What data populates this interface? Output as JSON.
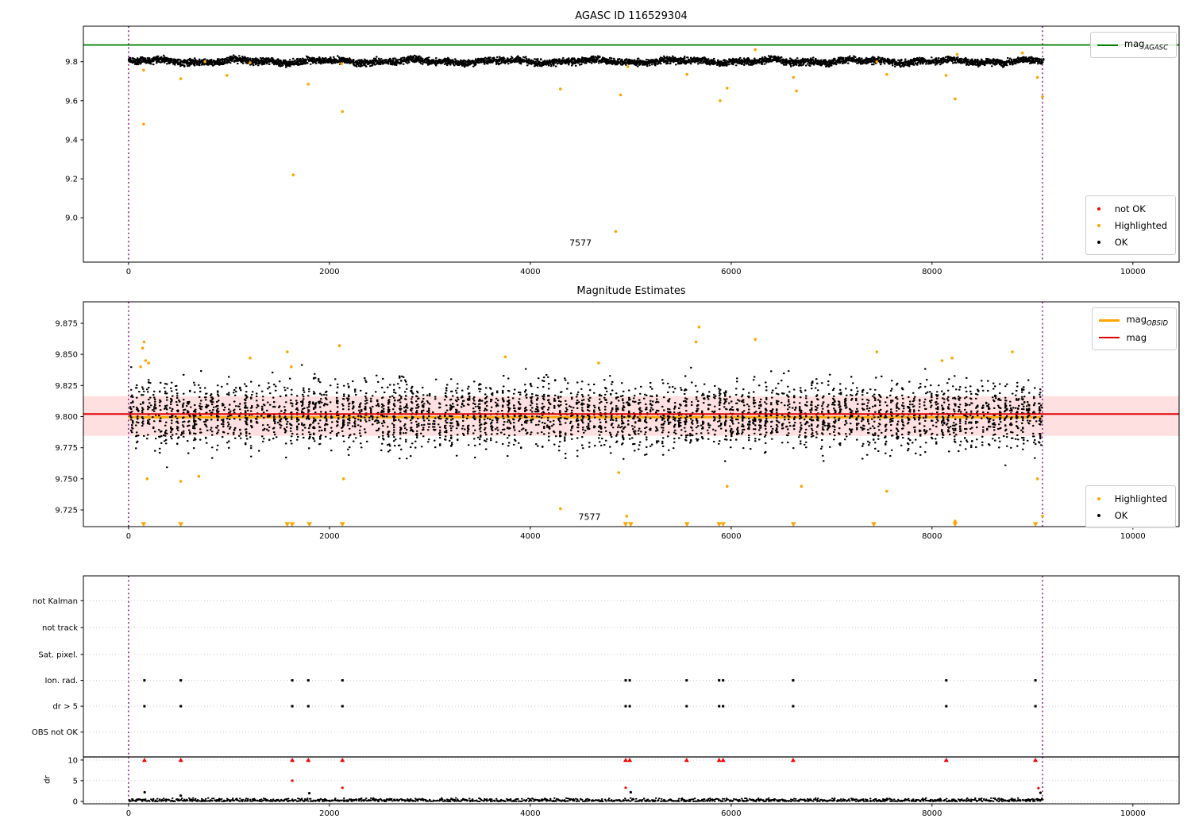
{
  "titles": {
    "top": "AGASC ID 116529304",
    "middle": "Magnitude Estimates"
  },
  "colors": {
    "ok": "#000000",
    "highlighted": "#FFA500",
    "not_ok": "#FF0000",
    "mag_agasc_line": "#008000",
    "mag_line": "#E00000",
    "obsid_line": "#FFA500",
    "mag_band": "rgba(255,0,0,0.12)",
    "vline": "#8B008B",
    "grid": "#c8c8c8",
    "spine": "#000000"
  },
  "legends": {
    "plot1_line": {
      "main": "mag",
      "sub": "AGASC"
    },
    "plot1_status": [
      {
        "label": "not OK"
      },
      {
        "label": "Highlighted"
      },
      {
        "label": "OK"
      }
    ],
    "plot2_obsid": {
      "main": "mag",
      "sub": "OBSID"
    },
    "plot2_mag": {
      "main": "mag",
      "sub": ""
    },
    "plot2_status": [
      {
        "label": "Highlighted"
      },
      {
        "label": "OK"
      }
    ]
  },
  "chart_data": [
    {
      "type": "scatter",
      "title": "AGASC ID 116529304",
      "xlim": [
        -450,
        10460
      ],
      "ylim": [
        8.773,
        9.982
      ],
      "xticks": [
        0,
        2000,
        4000,
        6000,
        8000,
        10000
      ],
      "yticks": [
        {
          "v": 9.0,
          "label": "9.0"
        },
        {
          "v": 9.2,
          "label": "9.2"
        },
        {
          "v": 9.4,
          "label": "9.4"
        },
        {
          "v": 9.6,
          "label": "9.6"
        },
        {
          "v": 9.8,
          "label": "9.8"
        }
      ],
      "mag_agasc": 9.886,
      "vlines": [
        0,
        9100
      ],
      "ok_band": {
        "mean": 9.802,
        "n": 4500,
        "x_range": [
          0,
          9100
        ],
        "spread": 0.026,
        "wiggle": 0.008
      },
      "highlighted": [
        [
          150,
          9.757
        ],
        [
          150,
          9.48
        ],
        [
          520,
          9.713
        ],
        [
          760,
          9.8
        ],
        [
          980,
          9.73
        ],
        [
          1210,
          9.795
        ],
        [
          1640,
          9.22
        ],
        [
          1790,
          9.685
        ],
        [
          2120,
          9.79
        ],
        [
          2130,
          9.545
        ],
        [
          4300,
          9.66
        ],
        [
          4850,
          8.93
        ],
        [
          4900,
          9.63
        ],
        [
          4970,
          9.775
        ],
        [
          5560,
          9.735
        ],
        [
          5890,
          9.6
        ],
        [
          5960,
          9.665
        ],
        [
          6240,
          9.862
        ],
        [
          6620,
          9.72
        ],
        [
          6650,
          9.65
        ],
        [
          7450,
          9.8
        ],
        [
          7550,
          9.735
        ],
        [
          8140,
          9.73
        ],
        [
          8230,
          9.61
        ],
        [
          8250,
          9.838
        ],
        [
          8900,
          9.845
        ],
        [
          9050,
          9.72
        ],
        [
          9100,
          9.62
        ]
      ],
      "annotation": {
        "text": "7577",
        "x": 4500,
        "y": 8.871
      }
    },
    {
      "type": "scatter",
      "title": "Magnitude Estimates",
      "xlim": [
        -450,
        10460
      ],
      "ylim": [
        9.7116,
        9.8922
      ],
      "xticks": [
        0,
        2000,
        4000,
        6000,
        8000,
        10000
      ],
      "yticks": [
        {
          "v": 9.725,
          "label": "9.725"
        },
        {
          "v": 9.75,
          "label": "9.750"
        },
        {
          "v": 9.775,
          "label": "9.775"
        },
        {
          "v": 9.8,
          "label": "9.800"
        },
        {
          "v": 9.825,
          "label": "9.825"
        },
        {
          "v": 9.85,
          "label": "9.850"
        },
        {
          "v": 9.875,
          "label": "9.875"
        }
      ],
      "mag": 9.802,
      "mag_obsid": 9.7995,
      "mag_band": [
        9.7845,
        9.8164
      ],
      "vlines": [
        0,
        9100
      ],
      "ok_cloud": {
        "mean": 9.801,
        "n": 4200,
        "x_range": [
          0,
          9100
        ],
        "spread": 0.045,
        "columns": 160
      },
      "highlighted": [
        [
          120,
          9.84
        ],
        [
          140,
          9.855
        ],
        [
          155,
          9.86
        ],
        [
          170,
          9.845
        ],
        [
          185,
          9.75
        ],
        [
          200,
          9.843
        ],
        [
          520,
          9.748
        ],
        [
          700,
          9.752
        ],
        [
          1210,
          9.847
        ],
        [
          1580,
          9.852
        ],
        [
          1620,
          9.84
        ],
        [
          2100,
          9.857
        ],
        [
          2140,
          9.75
        ],
        [
          3750,
          9.848
        ],
        [
          4300,
          9.726
        ],
        [
          4680,
          9.843
        ],
        [
          4880,
          9.755
        ],
        [
          4960,
          9.72
        ],
        [
          5650,
          9.86
        ],
        [
          5680,
          9.872
        ],
        [
          5960,
          9.744
        ],
        [
          6240,
          9.862
        ],
        [
          6700,
          9.744
        ],
        [
          7450,
          9.852
        ],
        [
          7550,
          9.74
        ],
        [
          8100,
          9.845
        ],
        [
          8200,
          9.847
        ],
        [
          8230,
          9.716
        ],
        [
          8800,
          9.852
        ],
        [
          9050,
          9.75
        ],
        [
          9100,
          9.72
        ]
      ],
      "clipped_x": [
        150,
        520,
        1580,
        1630,
        1800,
        2130,
        4950,
        5000,
        5560,
        5880,
        5920,
        6620,
        7420,
        8230,
        9030
      ],
      "annotation": {
        "text": "7577",
        "x": 4590,
        "y": 9.7193
      }
    },
    {
      "type": "flags",
      "xlim": [
        -450,
        10460
      ],
      "xticks": [
        0,
        2000,
        4000,
        6000,
        8000,
        10000
      ],
      "u_top": 10.9,
      "u_bottom": -0.115,
      "rows": [
        {
          "label": "not Kalman",
          "u": 9.7,
          "x": []
        },
        {
          "label": "not track",
          "u": 8.4,
          "x": []
        },
        {
          "label": "Sat. pixel.",
          "u": 7.1,
          "x": []
        },
        {
          "label": "Ion. rad.",
          "u": 5.85,
          "x": [
            158,
            520,
            1630,
            1790,
            2130,
            4950,
            4990,
            5557,
            5880,
            5920,
            6617,
            8142,
            9030
          ]
        },
        {
          "label": "dr > 5",
          "u": 4.6,
          "x": [
            158,
            520,
            1630,
            1790,
            2130,
            4950,
            4990,
            5557,
            5880,
            5920,
            6617,
            8142,
            9030
          ]
        },
        {
          "label": "OBS not OK",
          "u": 3.35,
          "x": []
        }
      ],
      "separator_u": 2.15,
      "dr_axis": {
        "label": "dr",
        "ticks": [
          {
            "v": 0,
            "u": 0,
            "label": "0"
          },
          {
            "v": 5,
            "u": 1,
            "label": "5"
          },
          {
            "v": 10,
            "u": 2,
            "label": "10"
          }
        ]
      },
      "dr_red_x": [
        158,
        520,
        1630,
        1790,
        2130,
        4950,
        4990,
        5557,
        5880,
        5920,
        6617,
        8142,
        9030
      ],
      "dr_points_red": [
        [
          1630,
          5.0
        ],
        [
          2130,
          3.3
        ],
        [
          4950,
          3.3
        ],
        [
          9060,
          3.2
        ]
      ],
      "dr_points_black": [
        [
          160,
          2.2
        ],
        [
          520,
          1.4
        ],
        [
          1800,
          2.0
        ],
        [
          5000,
          2.2
        ],
        [
          9080,
          2.1
        ]
      ],
      "dr_band": {
        "n": 1400,
        "x_range": [
          0,
          9100
        ],
        "max": 0.85
      },
      "vlines": [
        0,
        9100
      ]
    }
  ]
}
